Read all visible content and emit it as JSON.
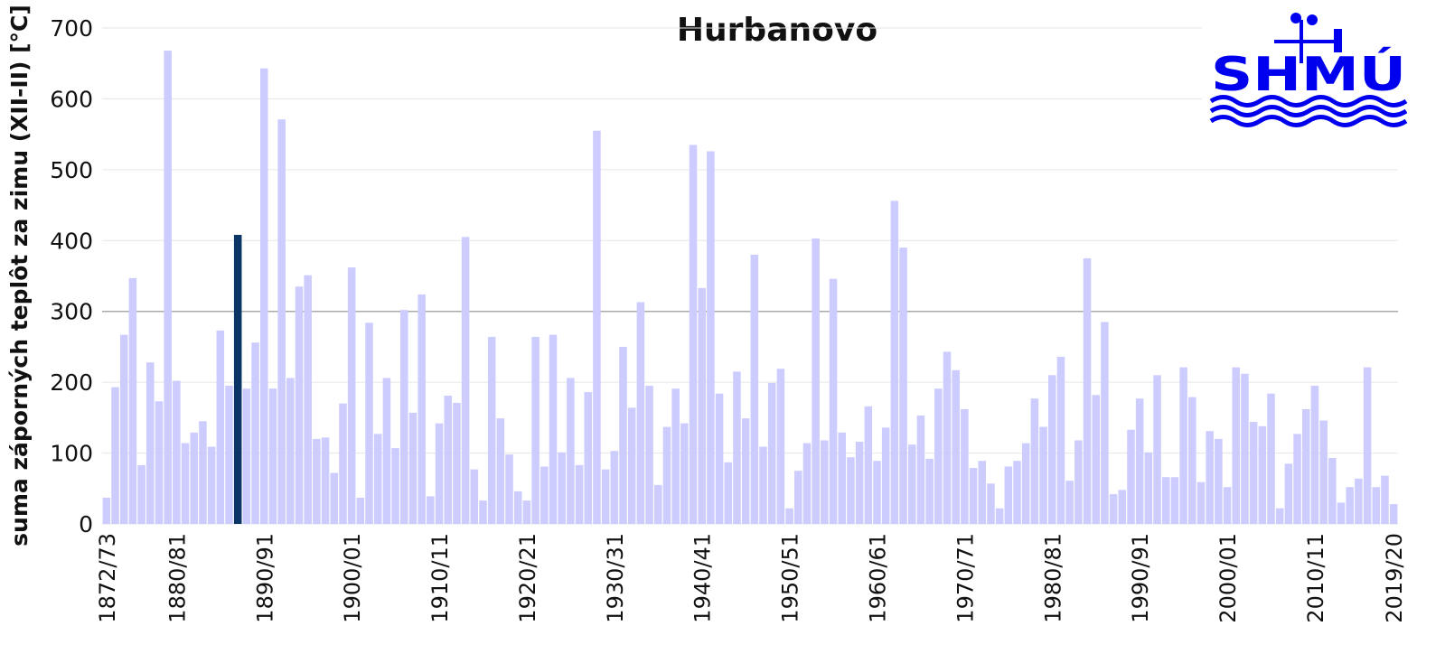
{
  "chart_data": {
    "type": "bar",
    "title": "Hurbanovo",
    "y_label": "suma záporných teplôt za zimu (XII-II) [°C]",
    "logo": "SHMÚ",
    "categories": [
      "1872/73",
      null,
      null,
      null,
      null,
      null,
      null,
      null,
      "1880/81",
      null,
      null,
      null,
      null,
      null,
      null,
      null,
      null,
      null,
      "1890/91",
      null,
      null,
      null,
      null,
      null,
      null,
      null,
      null,
      null,
      "1900/01",
      null,
      null,
      null,
      null,
      null,
      null,
      null,
      null,
      null,
      "1910/11",
      null,
      null,
      null,
      null,
      null,
      null,
      null,
      null,
      null,
      "1920/21",
      null,
      null,
      null,
      null,
      null,
      null,
      null,
      null,
      null,
      "1930/31",
      null,
      null,
      null,
      null,
      null,
      null,
      null,
      null,
      null,
      "1940/41",
      null,
      null,
      null,
      null,
      null,
      null,
      null,
      null,
      null,
      "1950/51",
      null,
      null,
      null,
      null,
      null,
      null,
      null,
      null,
      null,
      "1960/61",
      null,
      null,
      null,
      null,
      null,
      null,
      null,
      null,
      null,
      "1970/71",
      null,
      null,
      null,
      null,
      null,
      null,
      null,
      null,
      null,
      "1980/81",
      null,
      null,
      null,
      null,
      null,
      null,
      null,
      null,
      null,
      "1990/91",
      null,
      null,
      null,
      null,
      null,
      null,
      null,
      null,
      null,
      "2000/01",
      null,
      null,
      null,
      null,
      null,
      null,
      null,
      null,
      null,
      "2010/11",
      null,
      null,
      null,
      null,
      null,
      null,
      null,
      null,
      "2019/20"
    ],
    "values": [
      37,
      193,
      267,
      347,
      83,
      228,
      173,
      668,
      202,
      114,
      129,
      145,
      109,
      273,
      195,
      408,
      191,
      256,
      643,
      191,
      571,
      206,
      335,
      351,
      120,
      122,
      72,
      170,
      362,
      37,
      284,
      127,
      206,
      107,
      302,
      157,
      324,
      39,
      142,
      181,
      171,
      405,
      77,
      33,
      264,
      149,
      98,
      46,
      33,
      264,
      81,
      267,
      101,
      206,
      83,
      186,
      555,
      77,
      103,
      250,
      164,
      313,
      195,
      55,
      137,
      191,
      142,
      535,
      333,
      526,
      184,
      87,
      215,
      149,
      380,
      109,
      199,
      219,
      22,
      75,
      114,
      403,
      118,
      346,
      129,
      94,
      116,
      166,
      89,
      136,
      456,
      390,
      112,
      153,
      92,
      191,
      243,
      217,
      162,
      79,
      89,
      57,
      22,
      81,
      89,
      114,
      177,
      137,
      210,
      236,
      61,
      118,
      375,
      182,
      285,
      42,
      48,
      133,
      177,
      101,
      210,
      66,
      66,
      221,
      179,
      59,
      131,
      120,
      52,
      221,
      212,
      144,
      138,
      184,
      22,
      85,
      127,
      162,
      195,
      146,
      93,
      30,
      52,
      64,
      221,
      52,
      68,
      28
    ],
    "colors": [
      "#ccf",
      "#ccf",
      "#ccf",
      "#ccf",
      "#ccf",
      "#ccf",
      "#ccf",
      "#ccf",
      "#ccf",
      "#ccf",
      "#ccf",
      "#ccf",
      "#ccf",
      "#ccf",
      "#ccf",
      "#0b3566",
      "#ccf",
      "#ccf",
      "#ccf",
      "#ccf",
      "#ccf",
      "#ccf",
      "#ccf",
      "#ccf",
      "#ccf",
      "#ccf",
      "#ccf",
      "#ccf",
      "#ccf",
      "#ccf",
      "#ccf",
      "#ccf",
      "#ccf",
      "#ccf",
      "#ccf",
      "#ccf",
      "#ccf",
      "#ccf",
      "#ccf",
      "#ccf",
      "#ccf",
      "#ccf",
      "#ccf",
      "#ccf",
      "#ccf",
      "#ccf",
      "#ccf",
      "#ccf",
      "#ccf",
      "#ccf",
      "#ccf",
      "#ccf",
      "#ccf",
      "#ccf",
      "#ccf",
      "#ccf",
      "#ccf",
      "#ccf",
      "#ccf",
      "#ccf",
      "#ccf",
      "#ccf",
      "#ccf",
      "#ccf",
      "#ccf",
      "#ccf",
      "#ccf",
      "#ccf",
      "#ccf",
      "#ccf",
      "#ccf",
      "#ccf",
      "#ccf",
      "#ccf",
      "#ccf",
      "#ccf",
      "#ccf",
      "#ccf",
      "#ccf",
      "#ccf",
      "#ccf",
      "#ccf",
      "#ccf",
      "#ccf",
      "#ccf",
      "#ccf",
      "#ccf",
      "#ccf",
      "#ccf",
      "#ccf",
      "#ccf",
      "#ccf",
      "#ccf",
      "#ccf",
      "#ccf",
      "#ccf",
      "#ccf",
      "#ccf",
      "#ccf",
      "#ccf",
      "#ccf",
      "#ccf",
      "#ccf",
      "#ccf",
      "#ccf",
      "#ccf",
      "#ccf",
      "#ccf",
      "#ccf",
      "#ccf",
      "#ccf",
      "#ccf",
      "#ccf",
      "#ccf",
      "#ccf",
      "#ccf",
      "#ccf",
      "#ccf",
      "#ccf",
      "#ccf",
      "#ccf",
      "#ccf",
      "#ccf",
      "#ccf",
      "#ccf",
      "#ccf",
      "#ccf",
      "#ccf",
      "#ccf",
      "#ccf",
      "#ccf",
      "#ccf",
      "#ccf",
      "#ccf",
      "#ccf",
      "#ccf",
      "#ccf",
      "#ccf",
      "#ccf",
      "#ccf",
      "#ccf",
      "#ccf",
      "#ccf",
      "#ccf",
      "#ccf",
      "#ccf",
      "#ccf",
      "#ccf"
    ],
    "ylim": [
      0,
      700
    ],
    "yticks": [
      0,
      100,
      200,
      300,
      400,
      500,
      600,
      700
    ],
    "grid": true,
    "reference_line": 300
  }
}
